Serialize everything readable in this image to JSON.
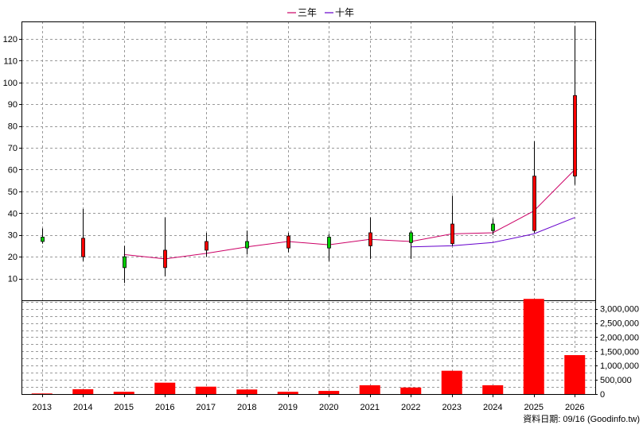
{
  "chart_data": {
    "type": "candlestick",
    "legend": [
      {
        "label": "三年",
        "color": "#cc0066"
      },
      {
        "label": "十年",
        "color": "#6600cc"
      }
    ],
    "source_note": "資料日期: 09/16  (Goodinfo.tw)",
    "x_labels": [
      "2013",
      "2014",
      "2015",
      "2016",
      "2017",
      "2018",
      "2019",
      "2020",
      "2021",
      "2022",
      "2023",
      "2024",
      "2025",
      "2026"
    ],
    "price_axis": {
      "ylim": [
        0,
        128
      ],
      "ticks": [
        10,
        20,
        30,
        40,
        50,
        60,
        70,
        80,
        90,
        100,
        110,
        120
      ]
    },
    "volume_axis": {
      "ylim": [
        0,
        3300000
      ],
      "ticks": [
        0,
        500000,
        1000000,
        1500000,
        2000000,
        2500000,
        3000000
      ],
      "tick_labels": [
        "0",
        "500,000",
        "1,000,000",
        "1,500,000",
        "2,000,000",
        "2,500,000",
        "3,000,000"
      ]
    },
    "candles": [
      {
        "year": "2013",
        "open": 29,
        "high": 33,
        "low": 26,
        "close": 27
      },
      {
        "year": "2014",
        "open": 20,
        "high": 42,
        "low": 18,
        "close": 28.5
      },
      {
        "year": "2015",
        "open": 20,
        "high": 25,
        "low": 8,
        "close": 15
      },
      {
        "year": "2016",
        "open": 15,
        "high": 38,
        "low": 11,
        "close": 23
      },
      {
        "year": "2017",
        "open": 23,
        "high": 31,
        "low": 20,
        "close": 27
      },
      {
        "year": "2018",
        "open": 27,
        "high": 32,
        "low": 21,
        "close": 24
      },
      {
        "year": "2019",
        "open": 24,
        "high": 31,
        "low": 22,
        "close": 29.5
      },
      {
        "year": "2020",
        "open": 29,
        "high": 30.5,
        "low": 18,
        "close": 24
      },
      {
        "year": "2021",
        "open": 25,
        "high": 38,
        "low": 19,
        "close": 31
      },
      {
        "year": "2022",
        "open": 31,
        "high": 32,
        "low": 19,
        "close": 26.5
      },
      {
        "year": "2023",
        "open": 26,
        "high": 48,
        "low": 25,
        "close": 35
      },
      {
        "year": "2024",
        "open": 35,
        "high": 37.5,
        "low": 30,
        "close": 32
      },
      {
        "year": "2025",
        "open": 32,
        "high": 73,
        "low": 31,
        "close": 57
      },
      {
        "year": "2026",
        "open": 57,
        "high": 126,
        "low": 53,
        "close": 94
      }
    ],
    "ma_3y": {
      "name": "三年",
      "x": [
        "2015",
        "2016",
        "2017",
        "2018",
        "2019",
        "2020",
        "2021",
        "2022",
        "2023",
        "2024",
        "2025",
        "2026"
      ],
      "values": [
        21,
        19,
        21.5,
        24.5,
        27,
        25.5,
        28,
        27,
        30.5,
        31,
        41,
        60
      ]
    },
    "ma_10y": {
      "name": "十年",
      "x": [
        "2022",
        "2023",
        "2024",
        "2025",
        "2026"
      ],
      "values": [
        24.5,
        25,
        26.5,
        30.5,
        38
      ]
    },
    "volume": [
      20000,
      170000,
      80000,
      400000,
      260000,
      160000,
      80000,
      110000,
      310000,
      230000,
      820000,
      310000,
      3350000,
      1370000
    ]
  }
}
